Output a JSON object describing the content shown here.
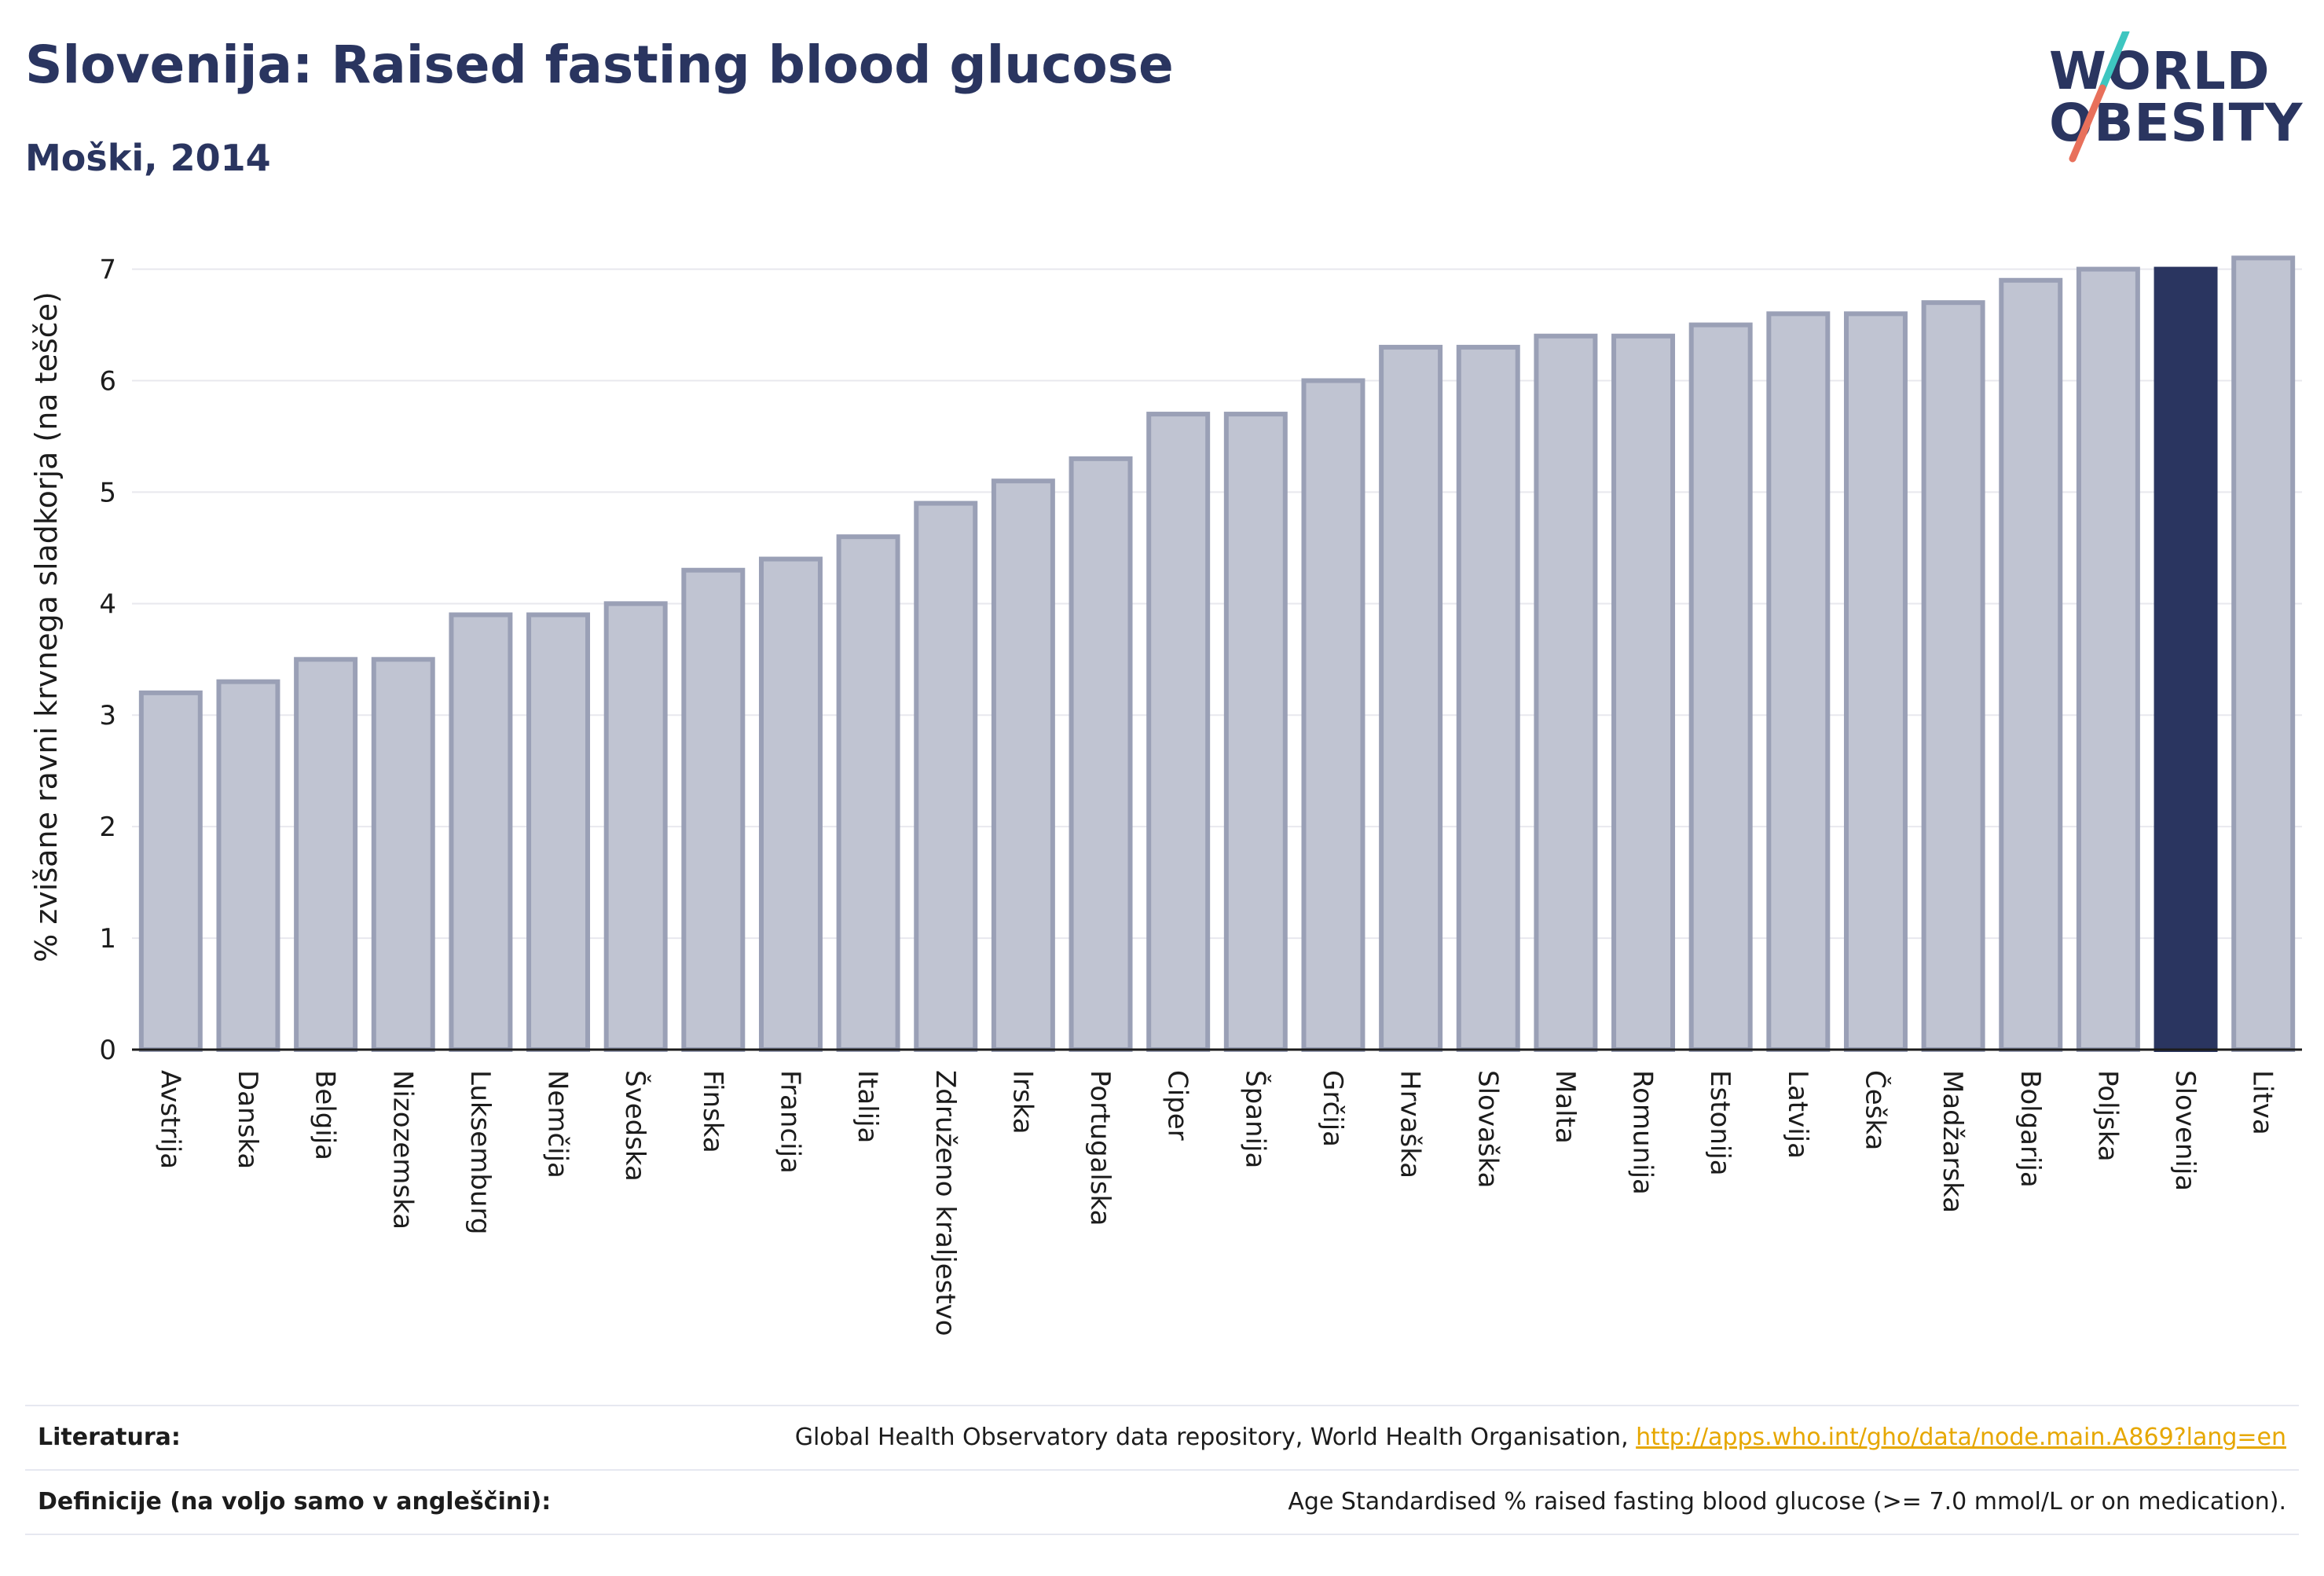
{
  "header": {
    "title": "Slovenija: Raised fasting blood glucose",
    "subtitle": "Moški, 2014"
  },
  "logo": {
    "line1": "WORLD",
    "line2": "OBESITY",
    "colors": {
      "text": "#2a3560",
      "slash_top": "#3ec6c0",
      "slash_bottom": "#e8705b"
    }
  },
  "chart_data": {
    "type": "bar",
    "ylabel": "% zvišane ravni krvnega sladkorja (na tešče)",
    "xlabel": "",
    "ylim": [
      0,
      7.3
    ],
    "yticks": [
      0,
      1,
      2,
      3,
      4,
      5,
      6,
      7
    ],
    "grid": true,
    "categories": [
      "Avstrija",
      "Danska",
      "Belgija",
      "Nizozemska",
      "Luksemburg",
      "Nemčija",
      "Švedska",
      "Finska",
      "Francija",
      "Italija",
      "Združeno kraljestvo",
      "Irska",
      "Portugalska",
      "Ciper",
      "Španija",
      "Grčija",
      "Hrvaška",
      "Slovaška",
      "Malta",
      "Romunija",
      "Estonija",
      "Latvija",
      "Češka",
      "Madžarska",
      "Bolgarija",
      "Poljska",
      "Slovenija",
      "Litva"
    ],
    "values": [
      3.2,
      3.3,
      3.5,
      3.5,
      3.9,
      3.9,
      4.0,
      4.3,
      4.4,
      4.6,
      4.9,
      5.1,
      5.3,
      5.7,
      5.7,
      6.0,
      6.3,
      6.3,
      6.4,
      6.4,
      6.5,
      6.6,
      6.6,
      6.7,
      6.9,
      7.0,
      7.0,
      7.1
    ],
    "highlight": "Slovenija",
    "colors": {
      "bar": "#c0c4d2",
      "bar_border": "#9aa0b6",
      "highlight": "#2a3560",
      "grid": "#e8e8ee",
      "axis": "#1c1c1c"
    }
  },
  "footer": {
    "sources_label": "Literatura:",
    "sources_text": "Global Health Observatory data repository, World Health Organisation, ",
    "sources_link": "http://apps.who.int/gho/data/node.main.A869?lang=en",
    "definitions_label": "Definicije (na voljo samo v angleščini):",
    "definitions_text": "Age Standardised % raised fasting blood glucose (>= 7.0 mmol/L or on medication)."
  }
}
